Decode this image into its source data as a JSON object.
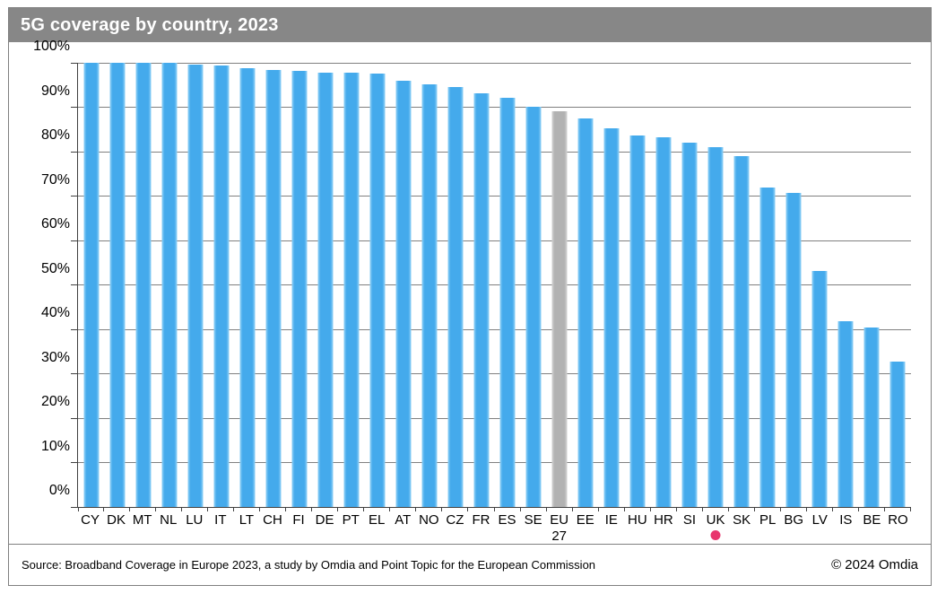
{
  "title": "5G coverage by country, 2023",
  "footer": {
    "source": "Source: Broadband Coverage in Europe 2023, a study by Omdia and Point Topic for the European Commission",
    "copyright": "© 2024 Omdia"
  },
  "colors": {
    "title_bg": "#878787",
    "title_text": "#ffffff",
    "bar_blue": "#44aaec",
    "bar_blue_edge": "#8fd0f6",
    "bar_gray": "#b2b2b2",
    "bar_gray_edge": "#d2d2d2",
    "gridline": "#808080",
    "axis": "#404040",
    "marker_pink": "#e8356d",
    "frame_border": "#808080"
  },
  "chart_data": {
    "type": "bar",
    "title": "5G coverage by country, 2023",
    "xlabel": "",
    "ylabel": "",
    "ylim": [
      0,
      100
    ],
    "ytick_step": 10,
    "yticks": [
      "0%",
      "10%",
      "20%",
      "30%",
      "40%",
      "50%",
      "60%",
      "70%",
      "80%",
      "90%",
      "100%"
    ],
    "grid": "horizontal",
    "legend": "none",
    "categories": [
      "CY",
      "DK",
      "MT",
      "NL",
      "LU",
      "IT",
      "LT",
      "CH",
      "FI",
      "DE",
      "PT",
      "EL",
      "AT",
      "NO",
      "CZ",
      "FR",
      "ES",
      "SE",
      "EU 27",
      "EE",
      "IE",
      "HU",
      "HR",
      "SI",
      "UK",
      "SK",
      "PL",
      "BG",
      "LV",
      "IS",
      "BE",
      "RO"
    ],
    "values": [
      100,
      100,
      100,
      100,
      99.5,
      99.3,
      98.7,
      98.4,
      98.1,
      97.8,
      97.8,
      97.6,
      96.0,
      95.1,
      94.5,
      93.1,
      92.2,
      90.2,
      89.0,
      87.4,
      85.2,
      83.6,
      83.2,
      82.0,
      81.0,
      78.9,
      71.9,
      70.7,
      53.2,
      41.8,
      40.5,
      32.8
    ],
    "highlighted_category": "EU 27",
    "highlight_note": "EU 27 bar drawn in gray; all other bars blue",
    "marker": {
      "category": "UK",
      "shape": "dot",
      "color": "#e8356d"
    }
  }
}
